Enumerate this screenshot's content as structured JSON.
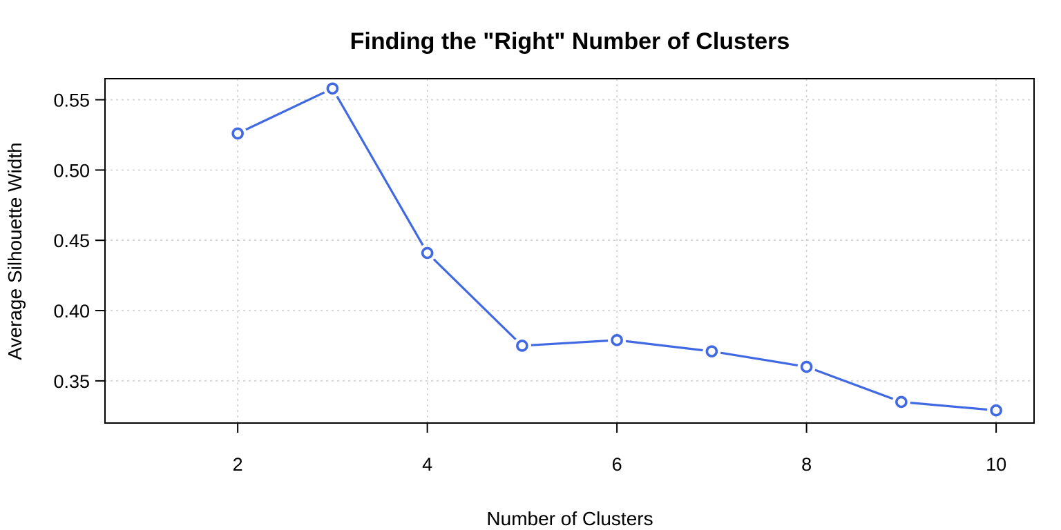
{
  "chart_data": {
    "type": "line",
    "title": "Finding the \"Right\" Number of Clusters",
    "xlabel": "Number of Clusters",
    "ylabel": "Average Silhouette Width",
    "xlim": [
      0.6,
      10.4
    ],
    "ylim": [
      0.32,
      0.565
    ],
    "xticks": [
      2,
      4,
      6,
      8,
      10
    ],
    "xtick_labels": [
      "2",
      "4",
      "6",
      "8",
      "10"
    ],
    "yticks": [
      0.35,
      0.4,
      0.45,
      0.5,
      0.55
    ],
    "ytick_labels": [
      "0.35",
      "0.40",
      "0.45",
      "0.50",
      "0.55"
    ],
    "grid": true,
    "series": [
      {
        "color": "#4169e1",
        "marker": "open-circle",
        "x": [
          2,
          3,
          4,
          5,
          6,
          7,
          8,
          9,
          10
        ],
        "y": [
          0.526,
          0.558,
          0.441,
          0.375,
          0.379,
          0.371,
          0.36,
          0.335,
          0.329
        ]
      }
    ]
  }
}
